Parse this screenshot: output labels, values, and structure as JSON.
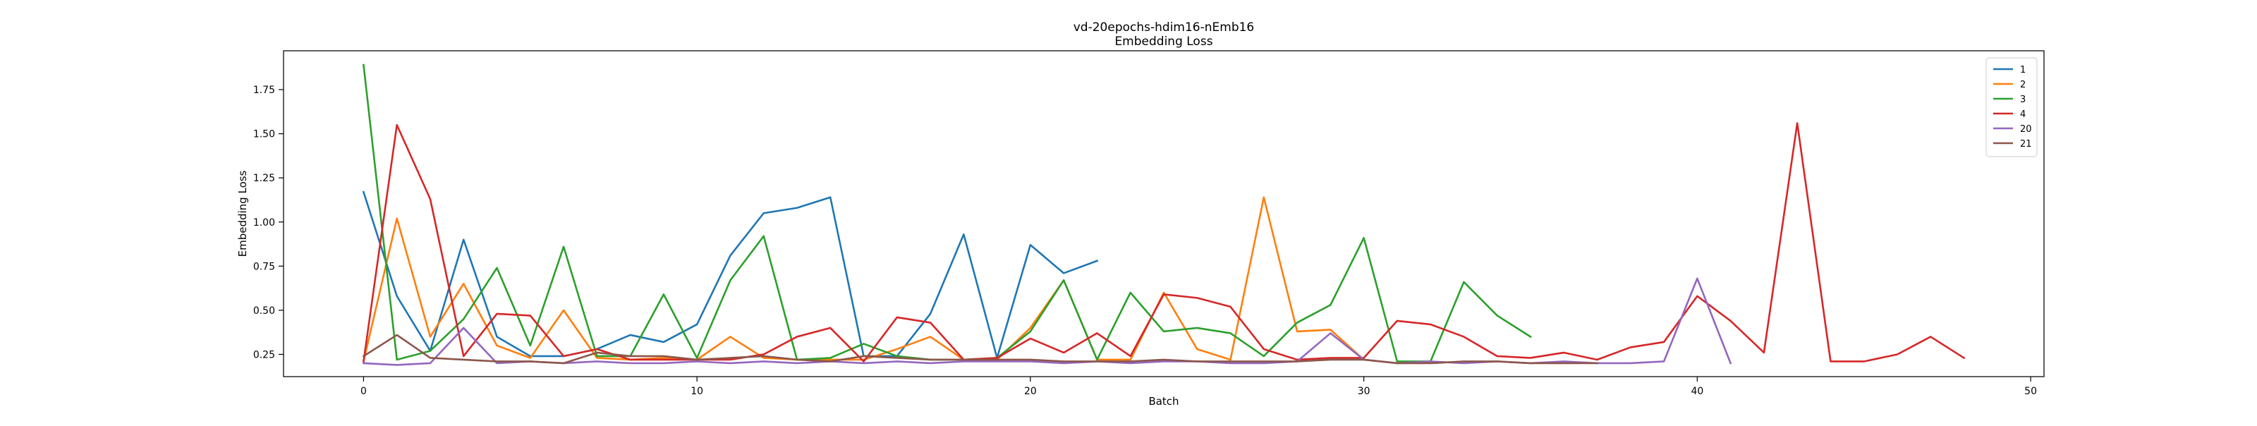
{
  "chart_data": {
    "type": "line",
    "title": "vd-20epochs-hdim16-nEmb16",
    "subtitle": "Embedding Loss",
    "xlabel": "Batch",
    "ylabel": "Embedding Loss",
    "xlim": [
      -2.4,
      50.4
    ],
    "ylim": [
      0.124,
      1.97
    ],
    "x_ticks": [
      0,
      10,
      20,
      30,
      40,
      50
    ],
    "y_ticks": [
      0.25,
      0.5,
      0.75,
      1.0,
      1.25,
      1.5,
      1.75
    ],
    "x_tick_labels": [
      "0",
      "10",
      "20",
      "30",
      "40",
      "50"
    ],
    "y_tick_labels": [
      "0.25",
      "0.50",
      "0.75",
      "1.00",
      "1.25",
      "1.50",
      "1.75"
    ],
    "grid": false,
    "legend_position": "top-right",
    "series": [
      {
        "name": "1",
        "color": "#1f77b4",
        "values": [
          1.17,
          0.58,
          0.27,
          0.9,
          0.35,
          0.24,
          0.24,
          0.28,
          0.36,
          0.32,
          0.42,
          0.81,
          1.05,
          1.08,
          1.14,
          0.24,
          0.24,
          0.48,
          0.93,
          0.23,
          0.87,
          0.71,
          0.78
        ]
      },
      {
        "name": "2",
        "color": "#ff7f0e",
        "values": [
          0.21,
          1.02,
          0.35,
          0.65,
          0.3,
          0.23,
          0.5,
          0.23,
          0.22,
          0.23,
          0.22,
          0.35,
          0.23,
          0.22,
          0.22,
          0.22,
          0.28,
          0.35,
          0.22,
          0.22,
          0.4,
          0.67,
          0.22,
          0.22,
          0.6,
          0.28,
          0.22,
          1.14,
          0.38,
          0.39,
          0.22
        ]
      },
      {
        "name": "3",
        "color": "#2ca02c",
        "values": [
          1.89,
          0.22,
          0.27,
          0.45,
          0.74,
          0.3,
          0.86,
          0.24,
          0.24,
          0.59,
          0.23,
          0.67,
          0.92,
          0.22,
          0.23,
          0.31,
          0.24,
          0.22,
          0.22,
          0.23,
          0.38,
          0.67,
          0.22,
          0.6,
          0.38,
          0.4,
          0.37,
          0.24,
          0.43,
          0.53,
          0.91,
          0.21,
          0.21,
          0.66,
          0.47,
          0.35
        ]
      },
      {
        "name": "4",
        "color": "#d62728",
        "values": [
          0.21,
          1.55,
          1.13,
          0.24,
          0.48,
          0.47,
          0.24,
          0.28,
          0.22,
          0.22,
          0.22,
          0.22,
          0.25,
          0.35,
          0.4,
          0.21,
          0.46,
          0.43,
          0.22,
          0.23,
          0.34,
          0.26,
          0.37,
          0.24,
          0.59,
          0.57,
          0.52,
          0.28,
          0.22,
          0.23,
          0.23,
          0.44,
          0.42,
          0.35,
          0.24,
          0.23,
          0.26,
          0.22,
          0.29,
          0.32,
          0.58,
          0.44,
          0.26,
          1.56,
          0.21,
          0.21,
          0.25,
          0.35,
          0.23
        ]
      },
      {
        "name": "20",
        "color": "#9467bd",
        "values": [
          0.2,
          0.19,
          0.2,
          0.4,
          0.2,
          0.21,
          0.2,
          0.21,
          0.2,
          0.2,
          0.21,
          0.2,
          0.21,
          0.2,
          0.21,
          0.2,
          0.21,
          0.2,
          0.21,
          0.21,
          0.21,
          0.2,
          0.21,
          0.2,
          0.21,
          0.21,
          0.2,
          0.2,
          0.21,
          0.37,
          0.22,
          0.2,
          0.21,
          0.2,
          0.21,
          0.2,
          0.21,
          0.2,
          0.2,
          0.21,
          0.68,
          0.2
        ]
      },
      {
        "name": "21",
        "color": "#8c564b",
        "values": [
          0.24,
          0.36,
          0.23,
          0.22,
          0.21,
          0.21,
          0.2,
          0.26,
          0.24,
          0.24,
          0.22,
          0.23,
          0.24,
          0.22,
          0.21,
          0.24,
          0.23,
          0.22,
          0.22,
          0.22,
          0.22,
          0.21,
          0.21,
          0.21,
          0.22,
          0.21,
          0.21,
          0.21,
          0.21,
          0.22,
          0.22,
          0.2,
          0.2,
          0.21,
          0.21,
          0.2,
          0.2,
          0.2
        ]
      }
    ]
  }
}
